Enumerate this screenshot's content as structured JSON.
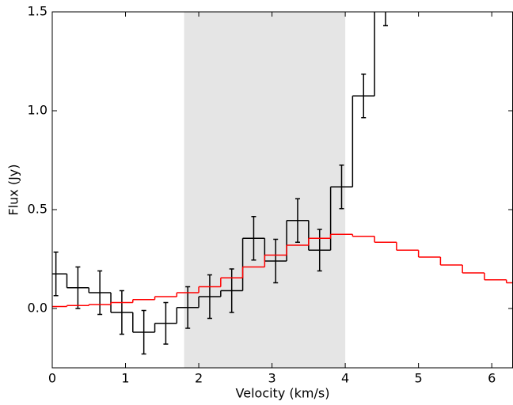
{
  "chart_data": {
    "type": "step",
    "x_label": "Velocity (km/s)",
    "y_label": "Flux (Jy)",
    "xlim": [
      0,
      6.29
    ],
    "ylim": [
      -0.3,
      1.5
    ],
    "xticks": [
      0,
      1,
      2,
      3,
      4,
      5,
      6
    ],
    "yticks": [
      {
        "value": 0,
        "label": "0.0"
      },
      {
        "value": 0.5,
        "label": "0.5"
      },
      {
        "value": 1,
        "label": "1.0"
      },
      {
        "value": 1.5,
        "label": "1.5"
      }
    ],
    "shaded_span": [
      1.8,
      4.0
    ],
    "shaded_color": "#e5e5e5",
    "series": [
      {
        "color": "#000000",
        "x": [
          0.05,
          0.35,
          0.65,
          0.95,
          1.25,
          1.55,
          1.85,
          2.15,
          2.45,
          2.75,
          3.05,
          3.35,
          3.65,
          3.95,
          4.25,
          4.55
        ],
        "values": [
          0.175,
          0.105,
          0.08,
          -0.02,
          -0.12,
          -0.075,
          0.005,
          0.06,
          0.09,
          0.355,
          0.24,
          0.445,
          0.295,
          0.615,
          1.075,
          1.54
        ],
        "errors": [
          0.11,
          0.105,
          0.11,
          0.11,
          0.11,
          0.105,
          0.105,
          0.11,
          0.11,
          0.11,
          0.11,
          0.11,
          0.105,
          0.11,
          0.11,
          0.11
        ]
      },
      {
        "color": "#ff0000",
        "x": [
          0.05,
          0.35,
          0.65,
          0.95,
          1.25,
          1.55,
          1.85,
          2.15,
          2.45,
          2.75,
          3.05,
          3.35,
          3.65,
          3.95,
          4.25,
          4.55,
          4.85,
          5.15,
          5.45,
          5.75,
          6.05,
          6.35
        ],
        "values": [
          0.01,
          0.015,
          0.02,
          0.03,
          0.045,
          0.06,
          0.08,
          0.11,
          0.155,
          0.21,
          0.27,
          0.32,
          0.355,
          0.375,
          0.365,
          0.335,
          0.295,
          0.26,
          0.22,
          0.18,
          0.145,
          0.13
        ]
      }
    ]
  }
}
